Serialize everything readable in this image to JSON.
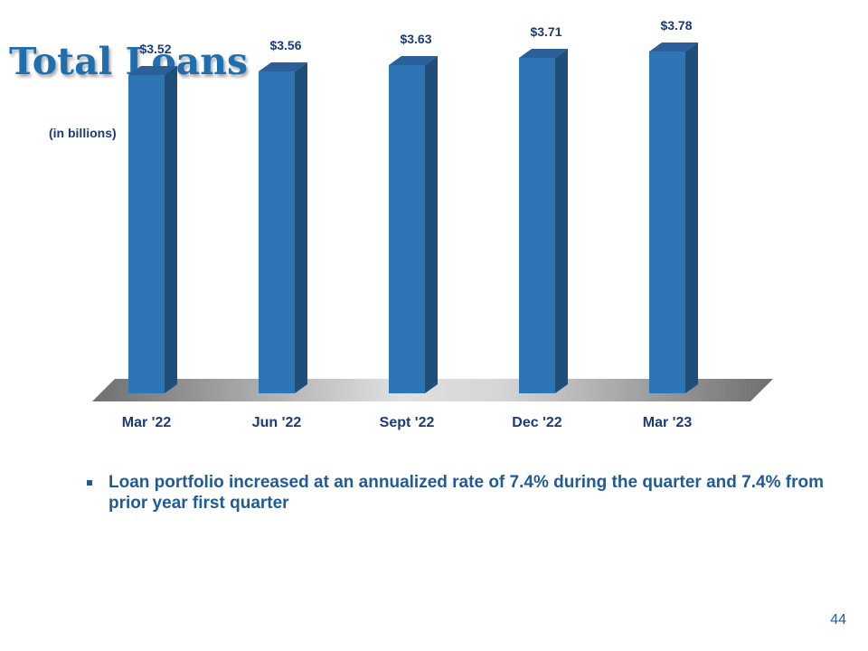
{
  "slide": {
    "title": "Total Loans",
    "units_note": "(in billions)",
    "bullet": "Loan portfolio increased at an annualized rate of 7.4% during the quarter and 7.4% from prior year first quarter",
    "page_number": "44"
  },
  "chart_data": {
    "type": "bar",
    "categories": [
      "Mar '22",
      "Jun '22",
      "Sept '22",
      "Dec '22",
      "Mar '23"
    ],
    "values": [
      3.52,
      3.56,
      3.63,
      3.71,
      3.78
    ],
    "data_labels": [
      "$3.52",
      "$3.56",
      "$3.63",
      "$3.71",
      "$3.78"
    ],
    "ylim": [
      0,
      4.6
    ],
    "grid": false,
    "three_d": true,
    "colors": {
      "bar_front": "#2e75b6",
      "bar_side": "#1f4e79",
      "bar_top": "#2b5f9a",
      "floor_light": "#e0e0e0",
      "floor_dark": "#6f6f6f",
      "label": "#1b3a78"
    }
  }
}
